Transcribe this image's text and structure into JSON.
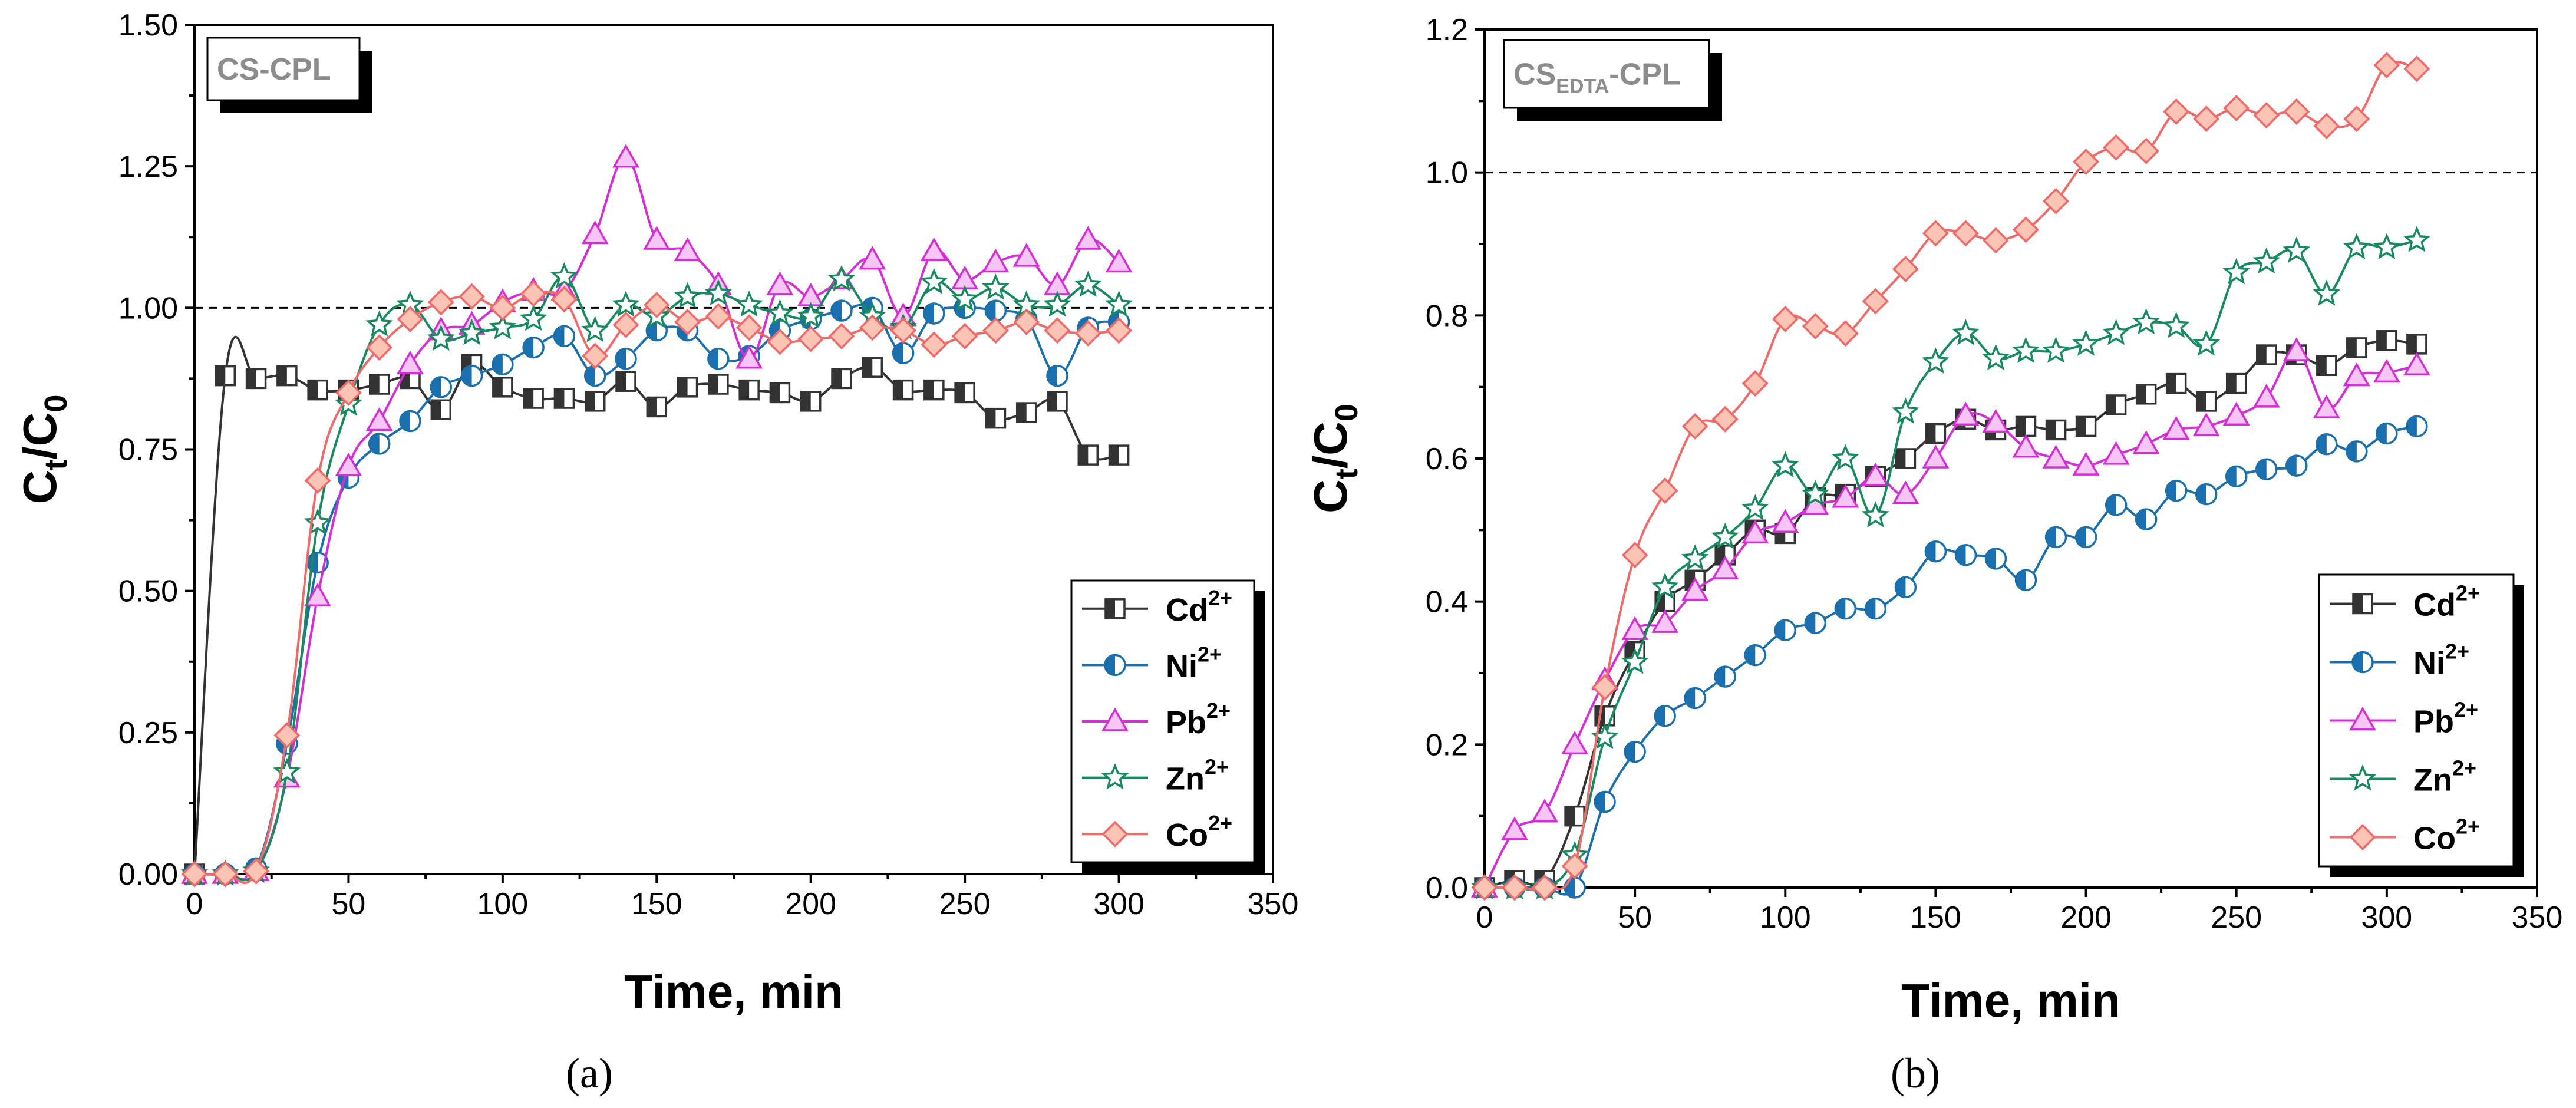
{
  "chart_data": [
    {
      "type": "line",
      "panel": "(a)",
      "badge": {
        "main": "CS-CPL",
        "sub": ""
      },
      "xlabel": "Time, min",
      "ylabel": {
        "main": "C",
        "sub1": "t",
        "mid": "/C",
        "sub2": "0"
      },
      "xlim": [
        0,
        350
      ],
      "ylim": [
        0,
        1.5
      ],
      "xticks": [
        0,
        50,
        100,
        150,
        200,
        250,
        300,
        350
      ],
      "yticks": [
        0.0,
        0.25,
        0.5,
        0.75,
        1.0,
        1.25,
        1.5
      ],
      "ytick_labels": [
        "0.00",
        "0.25",
        "0.50",
        "0.75",
        "1.00",
        "1.25",
        "1.50"
      ],
      "reference_line": 1.0,
      "legend_position": "bottom-right",
      "series": [
        {
          "name": "Cd",
          "sup": "2+",
          "color": "#333333",
          "marker": "square-half",
          "x": [
            0,
            10,
            20,
            30,
            40,
            50,
            60,
            70,
            80,
            90,
            100,
            110,
            120,
            130,
            140,
            150,
            160,
            170,
            180,
            190,
            200,
            210,
            220,
            230,
            240,
            250,
            260,
            270,
            280,
            290,
            300
          ],
          "y": [
            0,
            0.88,
            0.875,
            0.88,
            0.855,
            0.855,
            0.865,
            0.875,
            0.82,
            0.9,
            0.86,
            0.84,
            0.84,
            0.835,
            0.87,
            0.825,
            0.86,
            0.865,
            0.855,
            0.85,
            0.835,
            0.875,
            0.895,
            0.855,
            0.855,
            0.85,
            0.805,
            0.815,
            0.835,
            0.74,
            0.74
          ]
        },
        {
          "name": "Ni",
          "sup": "2+",
          "color": "#1a6fae",
          "marker": "circle-half",
          "x": [
            0,
            10,
            20,
            30,
            40,
            50,
            60,
            70,
            80,
            90,
            100,
            110,
            120,
            130,
            140,
            150,
            160,
            170,
            180,
            190,
            200,
            210,
            220,
            230,
            240,
            250,
            260,
            270,
            280,
            290,
            300
          ],
          "y": [
            0,
            0,
            0.01,
            0.23,
            0.55,
            0.7,
            0.76,
            0.8,
            0.86,
            0.88,
            0.9,
            0.93,
            0.95,
            0.88,
            0.91,
            0.96,
            0.96,
            0.91,
            0.915,
            0.96,
            0.98,
            0.995,
            1.0,
            0.92,
            0.99,
            1.0,
            0.995,
            0.98,
            0.88,
            0.965,
            0.975
          ]
        },
        {
          "name": "Pb",
          "sup": "2+",
          "color": "#d62ed6",
          "marker": "triangle",
          "x": [
            0,
            10,
            20,
            30,
            40,
            50,
            60,
            70,
            80,
            90,
            100,
            110,
            120,
            130,
            140,
            150,
            160,
            170,
            180,
            190,
            200,
            210,
            220,
            230,
            240,
            250,
            260,
            270,
            280,
            290,
            300
          ],
          "y": [
            0,
            0,
            0.005,
            0.17,
            0.49,
            0.72,
            0.8,
            0.9,
            0.96,
            0.97,
            1.01,
            1.03,
            1.03,
            1.13,
            1.265,
            1.12,
            1.1,
            1.04,
            0.91,
            1.04,
            1.02,
            1.05,
            1.085,
            0.985,
            1.1,
            1.05,
            1.08,
            1.09,
            1.04,
            1.12,
            1.08
          ]
        },
        {
          "name": "Zn",
          "sup": "2+",
          "color": "#178a5e",
          "marker": "star",
          "x": [
            0,
            10,
            20,
            30,
            40,
            50,
            60,
            70,
            80,
            90,
            100,
            110,
            120,
            130,
            140,
            150,
            160,
            170,
            180,
            190,
            200,
            210,
            220,
            230,
            240,
            250,
            260,
            270,
            280,
            290,
            300
          ],
          "y": [
            0,
            0,
            0.005,
            0.18,
            0.62,
            0.83,
            0.97,
            1.005,
            0.945,
            0.955,
            0.965,
            0.98,
            1.055,
            0.96,
            1.005,
            0.985,
            1.02,
            1.025,
            1.005,
            0.99,
            0.985,
            1.05,
            0.985,
            0.965,
            1.045,
            1.015,
            1.035,
            1.005,
            1.005,
            1.04,
            1.005
          ]
        },
        {
          "name": "Co",
          "sup": "2+",
          "color": "#f06a6a",
          "marker": "diamond",
          "x": [
            0,
            10,
            20,
            30,
            40,
            50,
            60,
            70,
            80,
            90,
            100,
            110,
            120,
            130,
            140,
            150,
            160,
            170,
            180,
            190,
            200,
            210,
            220,
            230,
            240,
            250,
            260,
            270,
            280,
            290,
            300
          ],
          "y": [
            0,
            0,
            0.005,
            0.245,
            0.695,
            0.85,
            0.93,
            0.98,
            1.01,
            1.02,
            1.0,
            1.025,
            1.015,
            0.915,
            0.97,
            1.005,
            0.975,
            0.985,
            0.965,
            0.94,
            0.945,
            0.95,
            0.965,
            0.96,
            0.935,
            0.95,
            0.96,
            0.975,
            0.96,
            0.955,
            0.96
          ]
        }
      ]
    },
    {
      "type": "line",
      "panel": "(b)",
      "badge": {
        "main": "CS",
        "sub": "EDTA",
        "tail": "-CPL"
      },
      "xlabel": "Time, min",
      "ylabel": {
        "main": "C",
        "sub1": "t",
        "mid": "/C",
        "sub2": "0"
      },
      "xlim": [
        0,
        350
      ],
      "ylim": [
        0,
        1.2
      ],
      "xticks": [
        0,
        50,
        100,
        150,
        200,
        250,
        300,
        350
      ],
      "yticks": [
        0.0,
        0.2,
        0.4,
        0.6,
        0.8,
        1.0,
        1.2
      ],
      "ytick_labels": [
        "0.0",
        "0.2",
        "0.4",
        "0.6",
        "0.8",
        "1.0",
        "1.2"
      ],
      "reference_line": 1.0,
      "legend_position": "bottom-right",
      "series": [
        {
          "name": "Cd",
          "sup": "2+",
          "color": "#333333",
          "marker": "square-half",
          "x": [
            0,
            10,
            20,
            30,
            40,
            50,
            60,
            70,
            80,
            90,
            100,
            110,
            120,
            130,
            140,
            150,
            160,
            170,
            180,
            190,
            200,
            210,
            220,
            230,
            240,
            250,
            260,
            270,
            280,
            290,
            300,
            310
          ],
          "y": [
            0,
            0.01,
            0.01,
            0.1,
            0.24,
            0.33,
            0.4,
            0.43,
            0.465,
            0.5,
            0.495,
            0.545,
            0.55,
            0.575,
            0.6,
            0.635,
            0.655,
            0.64,
            0.645,
            0.64,
            0.645,
            0.675,
            0.69,
            0.705,
            0.68,
            0.705,
            0.745,
            0.745,
            0.73,
            0.755,
            0.765,
            0.76
          ]
        },
        {
          "name": "Ni",
          "sup": "2+",
          "color": "#1a6fae",
          "marker": "circle-half",
          "x": [
            0,
            10,
            20,
            30,
            40,
            50,
            60,
            70,
            80,
            90,
            100,
            110,
            120,
            130,
            140,
            150,
            160,
            170,
            180,
            190,
            200,
            210,
            220,
            230,
            240,
            250,
            260,
            270,
            280,
            290,
            300,
            310
          ],
          "y": [
            0,
            0,
            0,
            0,
            0.12,
            0.19,
            0.24,
            0.265,
            0.295,
            0.325,
            0.36,
            0.37,
            0.39,
            0.39,
            0.42,
            0.47,
            0.465,
            0.46,
            0.43,
            0.49,
            0.49,
            0.535,
            0.515,
            0.555,
            0.55,
            0.575,
            0.585,
            0.59,
            0.62,
            0.61,
            0.635,
            0.645
          ]
        },
        {
          "name": "Pb",
          "sup": "2+",
          "color": "#d62ed6",
          "marker": "triangle",
          "x": [
            0,
            10,
            20,
            30,
            40,
            50,
            60,
            70,
            80,
            90,
            100,
            110,
            120,
            130,
            140,
            150,
            160,
            170,
            180,
            190,
            200,
            210,
            220,
            230,
            240,
            250,
            260,
            270,
            280,
            290,
            300,
            310
          ],
          "y": [
            0,
            0.08,
            0.105,
            0.2,
            0.29,
            0.36,
            0.37,
            0.415,
            0.445,
            0.495,
            0.51,
            0.535,
            0.545,
            0.575,
            0.55,
            0.6,
            0.66,
            0.65,
            0.615,
            0.6,
            0.59,
            0.605,
            0.62,
            0.64,
            0.645,
            0.66,
            0.685,
            0.75,
            0.67,
            0.715,
            0.72,
            0.73
          ]
        },
        {
          "name": "Zn",
          "sup": "2+",
          "color": "#178a5e",
          "marker": "star",
          "x": [
            0,
            10,
            20,
            30,
            40,
            50,
            60,
            70,
            80,
            90,
            100,
            110,
            120,
            130,
            140,
            150,
            160,
            170,
            180,
            190,
            200,
            210,
            220,
            230,
            240,
            250,
            260,
            270,
            280,
            290,
            300,
            310
          ],
          "y": [
            0,
            0,
            0,
            0.045,
            0.21,
            0.315,
            0.42,
            0.46,
            0.49,
            0.53,
            0.59,
            0.55,
            0.6,
            0.52,
            0.665,
            0.735,
            0.775,
            0.74,
            0.75,
            0.75,
            0.76,
            0.775,
            0.79,
            0.785,
            0.76,
            0.86,
            0.875,
            0.89,
            0.83,
            0.895,
            0.895,
            0.905
          ]
        },
        {
          "name": "Co",
          "sup": "2+",
          "color": "#f06a6a",
          "marker": "diamond",
          "x": [
            0,
            10,
            20,
            30,
            40,
            50,
            60,
            70,
            80,
            90,
            100,
            110,
            120,
            130,
            140,
            150,
            160,
            170,
            180,
            190,
            200,
            210,
            220,
            230,
            240,
            250,
            260,
            270,
            280,
            290,
            300,
            310
          ],
          "y": [
            0,
            0,
            0,
            0.03,
            0.28,
            0.465,
            0.555,
            0.645,
            0.655,
            0.705,
            0.795,
            0.785,
            0.775,
            0.82,
            0.865,
            0.915,
            0.915,
            0.905,
            0.92,
            0.96,
            1.015,
            1.035,
            1.03,
            1.085,
            1.075,
            1.09,
            1.08,
            1.085,
            1.065,
            1.075,
            1.15,
            1.145
          ]
        }
      ]
    }
  ]
}
